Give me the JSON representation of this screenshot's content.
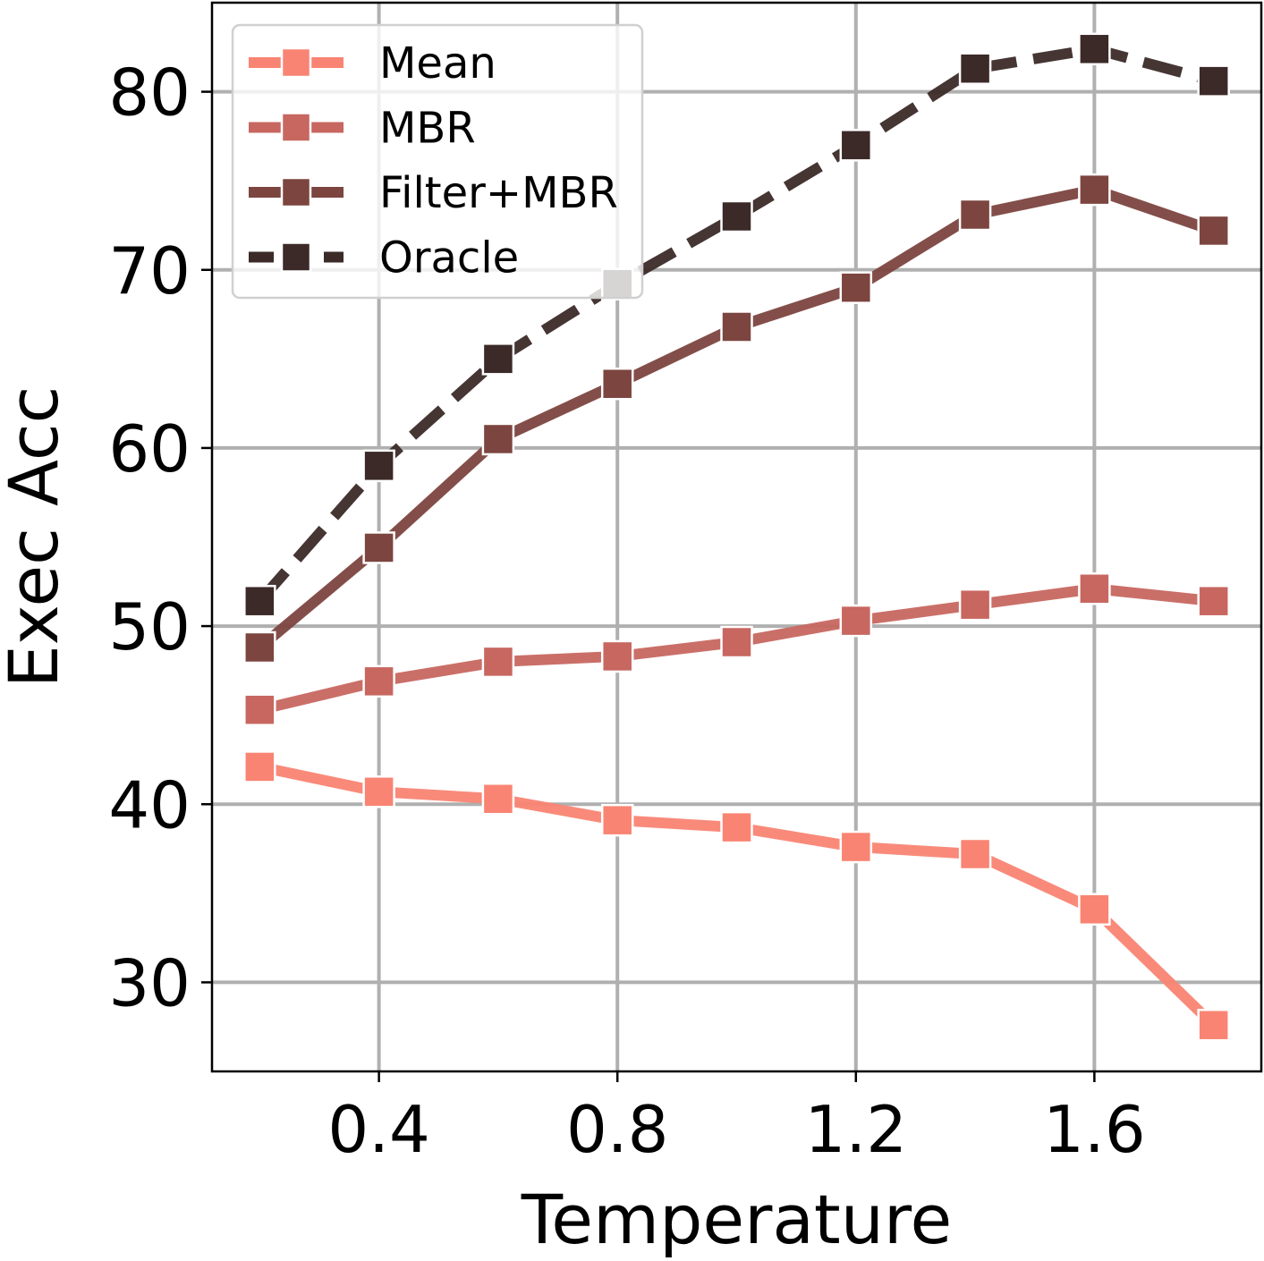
{
  "chart_data": {
    "type": "line",
    "title": "",
    "xlabel": "Temperature",
    "ylabel": "Exec Acc",
    "x": [
      0.2,
      0.4,
      0.6,
      0.8,
      1.0,
      1.2,
      1.4,
      1.6,
      1.8
    ],
    "xlim": [
      0.12,
      1.88
    ],
    "ylim": [
      25,
      85
    ],
    "xticks": [
      0.4,
      0.8,
      1.2,
      1.6
    ],
    "xtick_labels": [
      "0.4",
      "0.8",
      "1.2",
      "1.6"
    ],
    "yticks": [
      30,
      40,
      50,
      60,
      70,
      80
    ],
    "ytick_labels": [
      "30",
      "40",
      "50",
      "60",
      "70",
      "80"
    ],
    "grid": true,
    "legend_position": "top-left",
    "series": [
      {
        "name": "Mean",
        "color": "#f98473",
        "dash": "solid",
        "values": [
          42.1,
          40.7,
          40.3,
          39.1,
          38.7,
          37.6,
          37.2,
          34.1,
          27.6
        ]
      },
      {
        "name": "MBR",
        "color": "#c76760",
        "dash": "solid",
        "values": [
          45.3,
          46.9,
          48.0,
          48.3,
          49.1,
          50.3,
          51.2,
          52.1,
          51.4
        ]
      },
      {
        "name": "Filter+MBR",
        "color": "#7c453f",
        "dash": "solid",
        "values": [
          48.8,
          54.4,
          60.5,
          63.6,
          66.8,
          69.0,
          73.1,
          74.5,
          72.2
        ]
      },
      {
        "name": "Oracle",
        "color": "#3b2a28",
        "dash": "dashed",
        "values": [
          51.4,
          59.0,
          65.0,
          69.2,
          73.0,
          77.0,
          81.3,
          82.4,
          80.6
        ]
      }
    ]
  }
}
